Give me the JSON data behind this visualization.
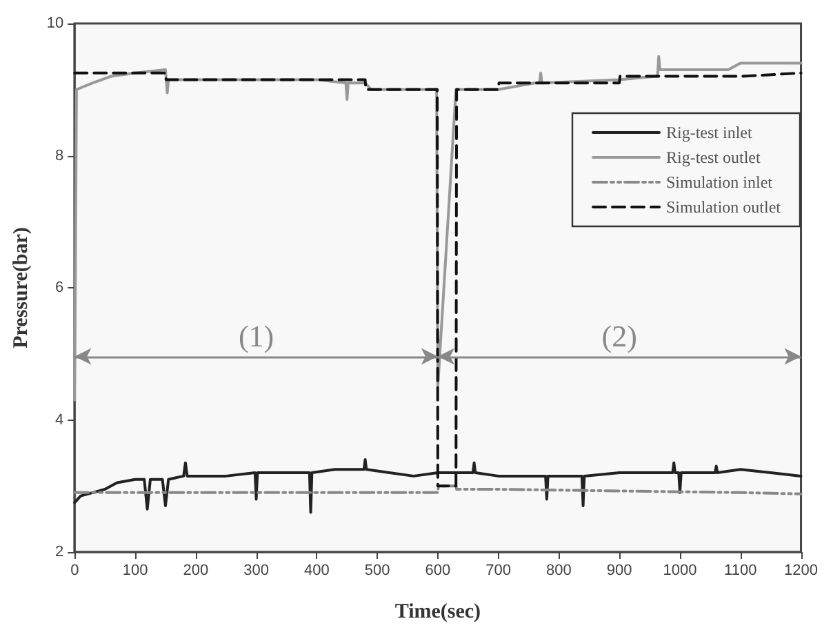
{
  "chart_data": {
    "type": "line",
    "xlabel": "Time(sec)",
    "ylabel": "Pressure(bar)",
    "xlim": [
      0,
      1200
    ],
    "ylim": [
      2,
      10
    ],
    "xticks": [
      0,
      100,
      200,
      300,
      400,
      500,
      600,
      700,
      800,
      900,
      1000,
      1100,
      1200
    ],
    "yticks": [
      2,
      4,
      6,
      8,
      10
    ],
    "grid": false,
    "legend": "top right",
    "marker": "none",
    "bands": [
      {
        "axis": "x",
        "from": 0,
        "to": 600,
        "label": "(1)",
        "color": "#888888"
      },
      {
        "axis": "x",
        "from": 600,
        "to": 1200,
        "label": "(2)",
        "color": "#888888"
      }
    ],
    "series": [
      {
        "name": "Rig-test inlet",
        "color": "#222222",
        "line_style": "solid",
        "x": [
          0,
          10,
          30,
          50,
          70,
          100,
          115,
          120,
          125,
          145,
          150,
          155,
          180,
          183,
          186,
          200,
          250,
          298,
          300,
          302,
          350,
          388,
          390,
          392,
          430,
          478,
          480,
          482,
          520,
          560,
          600,
          620,
          640,
          658,
          660,
          662,
          700,
          778,
          780,
          782,
          838,
          840,
          842,
          900,
          988,
          990,
          992,
          998,
          1000,
          1002,
          1058,
          1060,
          1062,
          1100,
          1150,
          1200
        ],
        "values": [
          2.75,
          2.85,
          2.9,
          2.95,
          3.05,
          3.1,
          3.1,
          2.65,
          3.1,
          3.1,
          2.7,
          3.1,
          3.15,
          3.35,
          3.15,
          3.15,
          3.15,
          3.2,
          2.8,
          3.2,
          3.2,
          3.2,
          2.6,
          3.2,
          3.25,
          3.25,
          3.4,
          3.25,
          3.2,
          3.15,
          3.2,
          3.2,
          3.2,
          3.2,
          3.35,
          3.2,
          3.15,
          3.15,
          2.8,
          3.15,
          3.15,
          2.7,
          3.15,
          3.2,
          3.2,
          3.35,
          3.2,
          3.2,
          2.9,
          3.2,
          3.2,
          3.3,
          3.2,
          3.25,
          3.2,
          3.15
        ]
      },
      {
        "name": "Rig-test outlet",
        "color": "#999999",
        "line_style": "solid",
        "x": [
          0,
          3,
          30,
          60,
          100,
          150,
          153,
          155,
          200,
          300,
          400,
          448,
          450,
          452,
          480,
          490,
          560,
          598,
          600,
          630,
          640,
          700,
          760,
          768,
          770,
          772,
          900,
          960,
          963,
          965,
          967,
          1080,
          1100,
          1200
        ],
        "values": [
          4.3,
          9.0,
          9.1,
          9.2,
          9.25,
          9.3,
          8.95,
          9.15,
          9.15,
          9.15,
          9.15,
          9.1,
          8.85,
          9.1,
          9.1,
          9.0,
          9.0,
          9.0,
          4.5,
          9.0,
          9.0,
          9.0,
          9.1,
          9.1,
          9.25,
          9.1,
          9.15,
          9.2,
          9.2,
          9.5,
          9.3,
          9.3,
          9.4,
          9.4
        ]
      },
      {
        "name": "Simulation inlet",
        "color": "#888888",
        "line_style": "dashdot",
        "x": [
          0,
          600,
          601,
          630,
          631,
          700,
          1100,
          1200
        ],
        "values": [
          2.9,
          2.9,
          3.0,
          3.0,
          2.95,
          2.95,
          2.9,
          2.88
        ]
      },
      {
        "name": "Simulation outlet",
        "color": "#111111",
        "line_style": "dashed",
        "x": [
          0,
          150,
          151,
          480,
          481,
          599,
          600,
          630,
          631,
          700,
          701,
          900,
          901,
          1100,
          1200
        ],
        "values": [
          9.25,
          9.25,
          9.15,
          9.15,
          9.0,
          9.0,
          3.0,
          3.0,
          9.0,
          9.0,
          9.1,
          9.1,
          9.2,
          9.2,
          9.25
        ]
      }
    ]
  }
}
